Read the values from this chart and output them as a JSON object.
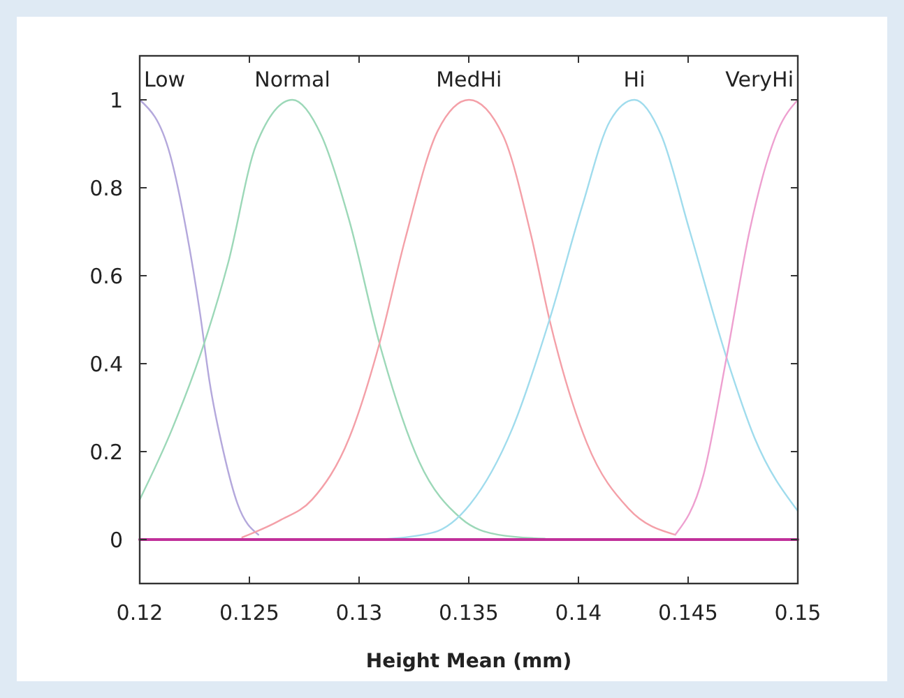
{
  "chart_data": {
    "type": "line",
    "xlabel": "Height Mean (mm)",
    "xlim": [
      0.12,
      0.15
    ],
    "ylim": [
      -0.1,
      1.1
    ],
    "xticks": [
      0.12,
      0.125,
      0.13,
      0.135,
      0.14,
      0.145,
      0.15
    ],
    "yticks": [
      0,
      0.2,
      0.4,
      0.6,
      0.8,
      1
    ],
    "grid": false,
    "marker": "none",
    "line_style": "solid",
    "series": [
      {
        "name": "Low",
        "color": "#b4a8dc",
        "x": [
          0.12,
          0.12138,
          0.12212,
          0.12276,
          0.12318,
          0.12382,
          0.12446,
          0.12541
        ],
        "values": [
          1,
          0.876,
          0.704,
          0.511,
          0.36,
          0.199,
          0.081,
          0.011
        ]
      },
      {
        "name": "Normal",
        "color": "#9cd8b8",
        "x": [
          0.12,
          0.12149,
          0.12308,
          0.12403,
          0.12531,
          0.12696,
          0.12828,
          0.12955,
          0.13093,
          0.13274,
          0.13465,
          0.13635,
          0.13847
        ],
        "values": [
          0.091,
          0.253,
          0.468,
          0.629,
          0.898,
          1,
          0.919,
          0.726,
          0.446,
          0.177,
          0.048,
          0.011,
          0.002
        ]
      },
      {
        "name": "MedHi",
        "color": "#f4a0a8",
        "x": [
          0.12467,
          0.12637,
          0.12786,
          0.12955,
          0.13093,
          0.1321,
          0.13359,
          0.13501,
          0.13656,
          0.13783,
          0.13868,
          0.14038,
          0.14229,
          0.14441
        ],
        "values": [
          0.005,
          0.043,
          0.091,
          0.231,
          0.446,
          0.683,
          0.93,
          1,
          0.919,
          0.694,
          0.5,
          0.22,
          0.07,
          0.011
        ]
      },
      {
        "name": "Hi",
        "color": "#a0dced",
        "x": [
          0.13083,
          0.13338,
          0.13507,
          0.13699,
          0.13868,
          0.14017,
          0.14144,
          0.14255,
          0.14378,
          0.14506,
          0.14675,
          0.14803,
          0.15
        ],
        "values": [
          0,
          0.016,
          0.081,
          0.253,
          0.5,
          0.758,
          0.952,
          1,
          0.919,
          0.704,
          0.414,
          0.231,
          0.065
        ]
      },
      {
        "name": "VeryHi",
        "color": "#eea0d0",
        "x": [
          0.14441,
          0.14569,
          0.14675,
          0.14781,
          0.14909,
          0.15
        ],
        "values": [
          0.011,
          0.145,
          0.414,
          0.704,
          0.93,
          1
        ]
      },
      {
        "color": "#c0309a",
        "x": [
          0.12,
          0.15
        ],
        "values": [
          0,
          0
        ]
      }
    ]
  }
}
